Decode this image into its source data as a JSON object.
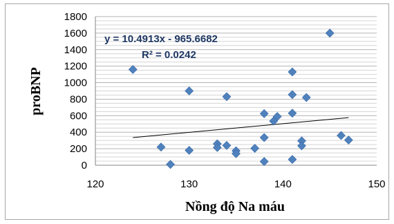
{
  "chart_data": {
    "type": "scatter",
    "xlabel": "Nồng độ Na máu",
    "ylabel": "proBNP",
    "xlim": [
      120,
      150
    ],
    "ylim": [
      0,
      1800
    ],
    "x_ticks": [
      "120",
      "130",
      "140",
      "150"
    ],
    "y_ticks": [
      "0",
      "200",
      "400",
      "600",
      "800",
      "1000",
      "1200",
      "1400",
      "1600",
      "1800"
    ],
    "grid": "horizontal",
    "marker_color": "#4f81bd",
    "trendline_color": "#000000",
    "series": [
      {
        "points": [
          [
            124,
            1160
          ],
          [
            127,
            220
          ],
          [
            128,
            10
          ],
          [
            130,
            900
          ],
          [
            130,
            180
          ],
          [
            133,
            260
          ],
          [
            133,
            215
          ],
          [
            134,
            830
          ],
          [
            134,
            240
          ],
          [
            135,
            175
          ],
          [
            135,
            140
          ],
          [
            137,
            205
          ],
          [
            138,
            625
          ],
          [
            138,
            335
          ],
          [
            138,
            45
          ],
          [
            139,
            535
          ],
          [
            139.4,
            590
          ],
          [
            141,
            1130
          ],
          [
            141,
            855
          ],
          [
            141,
            630
          ],
          [
            141,
            70
          ],
          [
            142,
            295
          ],
          [
            142,
            235
          ],
          [
            142.5,
            820
          ],
          [
            145,
            1600
          ],
          [
            146.2,
            360
          ],
          [
            147,
            305
          ]
        ]
      }
    ],
    "trendline": {
      "slope": 10.4913,
      "intercept": -965.6682,
      "x_range": [
        124,
        147
      ],
      "equation": "y = 10.4913x - 965.6682",
      "r_squared": "R² = 0.0242"
    }
  }
}
